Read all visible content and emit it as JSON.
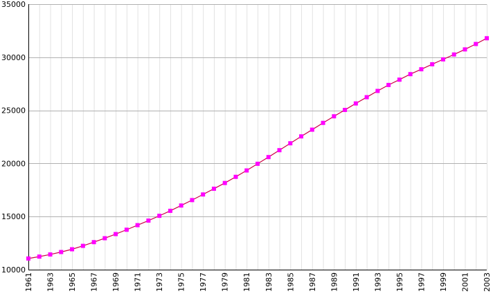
{
  "chart_data": {
    "type": "line",
    "title": "",
    "xlabel": "",
    "ylabel": "",
    "x": [
      1961,
      1962,
      1963,
      1964,
      1965,
      1966,
      1967,
      1968,
      1969,
      1970,
      1971,
      1972,
      1973,
      1974,
      1975,
      1976,
      1977,
      1978,
      1979,
      1980,
      1981,
      1982,
      1983,
      1984,
      1985,
      1986,
      1987,
      1988,
      1989,
      1990,
      1991,
      1992,
      1993,
      1994,
      1995,
      1996,
      1997,
      1998,
      1999,
      2000,
      2001,
      2002,
      2003
    ],
    "x_tick_labels": [
      "1961",
      "1963",
      "1965",
      "1967",
      "1969",
      "1971",
      "1973",
      "1975",
      "1977",
      "1979",
      "1981",
      "1983",
      "1985",
      "1987",
      "1989",
      "1991",
      "1993",
      "1995",
      "1997",
      "1999",
      "2001",
      "2003"
    ],
    "y_ticks": [
      10000,
      15000,
      20000,
      25000,
      30000,
      35000
    ],
    "y_tick_labels": [
      "10000",
      "15000",
      "20000",
      "25000",
      "30000",
      "35000"
    ],
    "xlim": [
      1961,
      2003
    ],
    "ylim": [
      10000,
      35000
    ],
    "grid": true,
    "legend": "none",
    "series": [
      {
        "color": "#ff00ff",
        "line_color": "#cc0044",
        "values": [
          11050,
          11230,
          11430,
          11660,
          11920,
          12240,
          12590,
          12960,
          13350,
          13760,
          14190,
          14620,
          15070,
          15540,
          16040,
          16550,
          17080,
          17620,
          18160,
          18740,
          19340,
          19970,
          20600,
          21250,
          21900,
          22550,
          23180,
          23820,
          24440,
          25040,
          25650,
          26240,
          26830,
          27390,
          27890,
          28410,
          28870,
          29340,
          29800,
          30260,
          30740,
          31250,
          31790
        ]
      }
    ]
  }
}
